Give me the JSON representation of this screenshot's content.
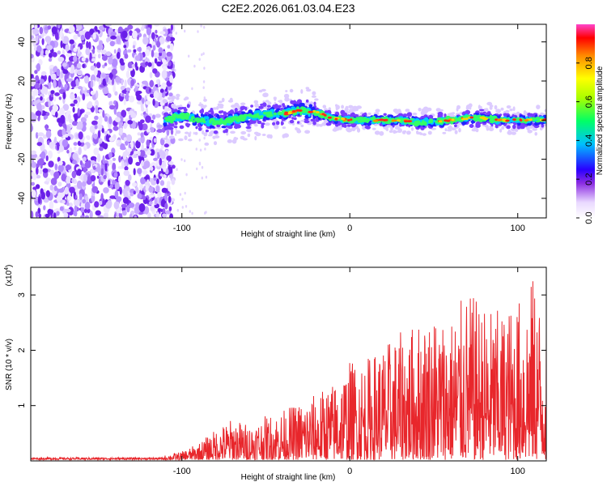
{
  "title": "C2E2.2026.061.03.04.E23",
  "chart_data": [
    {
      "type": "heatmap",
      "name": "spectrogram",
      "xlabel": "Height of straight line (km)",
      "ylabel": "Frequency (Hz)",
      "xlim": [
        -190,
        117
      ],
      "ylim": [
        -50,
        49
      ],
      "xticks": [
        -100,
        0,
        100
      ],
      "yticks": [
        -40,
        -20,
        0,
        20,
        40
      ],
      "noise_region_end_x": -105,
      "signal_track": {
        "x": [
          -110,
          -100,
          -90,
          -80,
          -70,
          -60,
          -50,
          -40,
          -30,
          -20,
          -10,
          0,
          10,
          20,
          30,
          40,
          50,
          60,
          70,
          80,
          90,
          100,
          110,
          117
        ],
        "freq": [
          0,
          2,
          0,
          -1,
          0,
          2,
          3,
          3,
          5,
          4,
          1,
          0,
          0,
          0,
          0,
          -1,
          -1,
          0,
          1,
          1,
          0,
          0,
          0,
          0
        ]
      },
      "colorbar": {
        "label": "Normalized spectral amplitude",
        "range": [
          0,
          1
        ],
        "ticks": [
          "0.0",
          "0.2",
          "0.4",
          "0.6",
          "0.8"
        ]
      }
    },
    {
      "type": "line",
      "name": "snr",
      "xlabel": "Height of straight line (km)",
      "ylabel": "SNR (10 * v/v)",
      "scale_label": "(x10",
      "scale_exp": "4",
      "scale_close": ")",
      "color": "#e8262b",
      "xlim": [
        -190,
        117
      ],
      "ylim": [
        0,
        3.5
      ],
      "xticks": [
        -100,
        0,
        100
      ],
      "yticks": [
        1,
        2,
        3
      ],
      "envelope_x": [
        -190,
        -110,
        -100,
        -90,
        -80,
        -70,
        -60,
        -50,
        -40,
        -30,
        -20,
        -10,
        0,
        10,
        20,
        30,
        40,
        50,
        60,
        70,
        80,
        90,
        100,
        110,
        117
      ],
      "envelope_y": [
        0.04,
        0.08,
        0.15,
        0.3,
        0.55,
        0.75,
        0.65,
        0.8,
        0.9,
        1.05,
        1.2,
        1.4,
        1.8,
        1.85,
        2.1,
        2.3,
        2.5,
        2.7,
        2.6,
        3.05,
        2.8,
        2.7,
        2.9,
        3.35,
        2.4
      ]
    }
  ]
}
